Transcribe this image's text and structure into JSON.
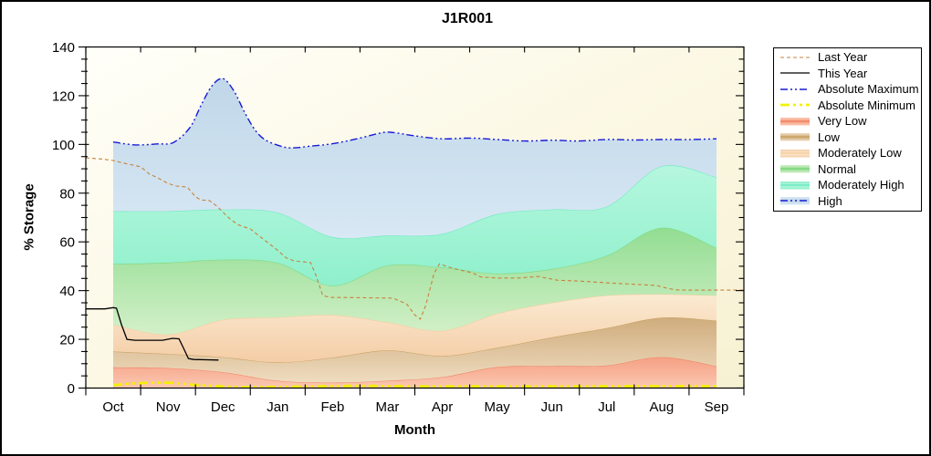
{
  "figure": {
    "title": "J1R001"
  },
  "axes": {
    "y_label": "% Storage",
    "x_label": "Month",
    "y_major_ticks": [
      0,
      20,
      40,
      60,
      80,
      100,
      120,
      140
    ],
    "y_minor_step": 5,
    "y_max": 140,
    "month_labels": [
      "Oct",
      "Nov",
      "Dec",
      "Jan",
      "Feb",
      "Mar",
      "Apr",
      "May",
      "Jun",
      "Jul",
      "Aug",
      "Sep"
    ]
  },
  "legend": {
    "items": [
      {
        "label": "Last Year",
        "ref": "last_year",
        "kind": "line"
      },
      {
        "label": "This Year",
        "ref": "this_year",
        "kind": "line"
      },
      {
        "label": "Absolute Maximum",
        "ref": "absolute_maximum",
        "kind": "line"
      },
      {
        "label": "Absolute Minimum",
        "ref": "absolute_minimum",
        "kind": "line"
      },
      {
        "label": "Very Low",
        "ref": "very_low",
        "kind": "band"
      },
      {
        "label": "Low",
        "ref": "low",
        "kind": "band"
      },
      {
        "label": "Moderately Low",
        "ref": "moderately_low",
        "kind": "band"
      },
      {
        "label": "Normal",
        "ref": "normal",
        "kind": "band"
      },
      {
        "label": "Moderately High",
        "ref": "moderately_high",
        "kind": "band"
      },
      {
        "label": "High",
        "ref": "high",
        "kind": "band-line",
        "line_ref": "absolute_maximum"
      }
    ]
  },
  "chart_data": {
    "type": "area",
    "title": "J1R001",
    "xlabel": "Month",
    "ylabel": "% Storage",
    "ylim": [
      0,
      140
    ],
    "categories": [
      "Oct",
      "Nov",
      "Dec",
      "Jan",
      "Feb",
      "Mar",
      "Apr",
      "May",
      "Jun",
      "Jul",
      "Aug",
      "Sep"
    ],
    "background": {
      "outer": "#FFFFFF",
      "plot_top_left": "#FFFFF9",
      "plot_bottom_right": "#F7F1D3"
    },
    "bands": [
      {
        "name": "very_low",
        "label": "Very Low",
        "values": [
          8.5,
          8.2,
          6.5,
          3.0,
          2.2,
          3.0,
          4.5,
          8.6,
          9.0,
          9.3,
          12.7,
          9.0
        ],
        "fill_top": "#F5A083",
        "fill_bottom": "#FBC8B2",
        "edge": "#F08264"
      },
      {
        "name": "low",
        "label": "Low",
        "values": [
          15.0,
          14.0,
          12.7,
          10.5,
          12.5,
          15.5,
          13.2,
          16.5,
          20.8,
          24.6,
          28.9,
          27.7
        ],
        "fill_top": "#CFAC7C",
        "fill_bottom": "#EFDCC0",
        "edge": "#C9A365"
      },
      {
        "name": "moderately_low",
        "label": "Moderately Low",
        "values": [
          26.0,
          22.0,
          28.0,
          29.0,
          30.0,
          27.0,
          23.5,
          30.5,
          35.0,
          38.0,
          38.5,
          38.0
        ],
        "fill_top": "#FBEAD2",
        "fill_bottom": "#F4CDA6",
        "edge": "#F6CD9E"
      },
      {
        "name": "normal",
        "label": "Normal",
        "values": [
          50.9,
          51.5,
          52.7,
          51.4,
          42.0,
          50.3,
          49.5,
          47.0,
          48.9,
          54.3,
          65.8,
          57.5
        ],
        "fill_top": "#92DD92",
        "fill_bottom": "#D3F0C8",
        "edge": "#7ED87E"
      },
      {
        "name": "moderately_high",
        "label": "Moderately High",
        "values": [
          72.6,
          72.6,
          73.3,
          72.0,
          62.0,
          62.6,
          63.3,
          71.4,
          73.3,
          74.5,
          91.0,
          86.5
        ],
        "fill_top": "#B5F7DE",
        "fill_bottom": "#8FF0CC",
        "edge": "#6BEABF"
      },
      {
        "name": "high",
        "label": "High",
        "values": [
          101,
          100.3,
          127,
          101,
          100.3,
          105,
          102.5,
          102,
          101.5,
          102,
          102,
          102.3
        ],
        "top_from_line": "absolute_maximum",
        "fill_top": "#C0D7E9",
        "fill_bottom": "#D8E8F4",
        "edge": "#1A1AD6"
      }
    ],
    "lines": {
      "last_year": {
        "label": "Last Year",
        "color": "#C8823C",
        "dash": "4 3",
        "width": 1.1,
        "smooth": false,
        "points": [
          [
            0,
            94.5
          ],
          [
            0.3,
            94
          ],
          [
            0.5,
            93.4
          ],
          [
            0.75,
            92
          ],
          [
            1.0,
            90.8
          ],
          [
            1.15,
            88
          ],
          [
            1.35,
            85.8
          ],
          [
            1.5,
            84
          ],
          [
            1.65,
            82.9
          ],
          [
            1.85,
            82.5
          ],
          [
            2.0,
            78.5
          ],
          [
            2.1,
            77.2
          ],
          [
            2.25,
            77
          ],
          [
            2.4,
            74.5
          ],
          [
            2.5,
            72.2
          ],
          [
            2.65,
            69
          ],
          [
            2.8,
            66.8
          ],
          [
            3.0,
            65.3
          ],
          [
            3.1,
            63.5
          ],
          [
            3.3,
            60
          ],
          [
            3.5,
            56.5
          ],
          [
            3.65,
            53.5
          ],
          [
            3.8,
            52.2
          ],
          [
            4.1,
            51.5
          ],
          [
            4.2,
            46
          ],
          [
            4.32,
            38
          ],
          [
            4.45,
            37.2
          ],
          [
            5.0,
            37.1
          ],
          [
            5.6,
            36.9
          ],
          [
            5.85,
            34.5
          ],
          [
            6.0,
            30
          ],
          [
            6.1,
            28.3
          ],
          [
            6.2,
            34
          ],
          [
            6.35,
            47
          ],
          [
            6.45,
            51
          ],
          [
            6.6,
            49.8
          ],
          [
            6.85,
            48.3
          ],
          [
            7.05,
            47.3
          ],
          [
            7.2,
            45.6
          ],
          [
            7.5,
            45.2
          ],
          [
            7.9,
            45.2
          ],
          [
            8.25,
            45.8
          ],
          [
            8.6,
            44.3
          ],
          [
            9.0,
            43.9
          ],
          [
            9.5,
            43.2
          ],
          [
            10.0,
            42.6
          ],
          [
            10.4,
            42.1
          ],
          [
            10.6,
            41
          ],
          [
            10.75,
            40.3
          ],
          [
            11.0,
            40.2
          ],
          [
            11.5,
            40.2
          ],
          [
            12.0,
            40.2
          ]
        ]
      },
      "this_year": {
        "label": "This Year",
        "color": "#000000",
        "dash": "",
        "width": 1.3,
        "smooth": false,
        "points": [
          [
            0,
            32.5
          ],
          [
            0.35,
            32.5
          ],
          [
            0.5,
            33.0
          ],
          [
            0.56,
            32.8
          ],
          [
            0.65,
            26
          ],
          [
            0.75,
            20
          ],
          [
            0.9,
            19.6
          ],
          [
            1.4,
            19.6
          ],
          [
            1.58,
            20.4
          ],
          [
            1.7,
            20.2
          ],
          [
            1.78,
            16.5
          ],
          [
            1.87,
            12.1
          ],
          [
            1.97,
            11.7
          ],
          [
            2.2,
            11.6
          ],
          [
            2.42,
            11.5
          ]
        ]
      },
      "absolute_maximum": {
        "label": "Absolute Maximum",
        "color": "#1A1AD6",
        "dash": "8 3 2 3 2 3",
        "width": 1.4,
        "smooth": true,
        "points": [
          [
            0.5,
            101
          ],
          [
            0.9,
            99.8
          ],
          [
            1.3,
            100.2
          ],
          [
            1.6,
            100.8
          ],
          [
            1.9,
            107
          ],
          [
            2.1,
            116
          ],
          [
            2.3,
            124
          ],
          [
            2.5,
            127
          ],
          [
            2.7,
            122
          ],
          [
            2.9,
            113
          ],
          [
            3.1,
            105.5
          ],
          [
            3.3,
            101.5
          ],
          [
            3.6,
            99
          ],
          [
            3.8,
            98.6
          ],
          [
            4.1,
            99.3
          ],
          [
            4.5,
            100.3
          ],
          [
            5.0,
            102.6
          ],
          [
            5.4,
            104.8
          ],
          [
            5.6,
            104.9
          ],
          [
            6.0,
            103.5
          ],
          [
            6.5,
            102.3
          ],
          [
            7.0,
            102.6
          ],
          [
            7.5,
            102
          ],
          [
            8.0,
            101.4
          ],
          [
            8.5,
            101.7
          ],
          [
            9.0,
            101.4
          ],
          [
            9.5,
            102
          ],
          [
            10.0,
            101.8
          ],
          [
            10.5,
            102
          ],
          [
            11.0,
            102
          ],
          [
            11.5,
            102.3
          ]
        ]
      },
      "absolute_minimum": {
        "label": "Absolute Minimum",
        "color": "#F2F200",
        "dash": "10 4 3 4 3 4",
        "width": 2.8,
        "smooth": true,
        "points": [
          [
            0.5,
            1.2
          ],
          [
            0.8,
            1.8
          ],
          [
            1.1,
            2.1
          ],
          [
            1.4,
            2.2
          ],
          [
            1.7,
            1.9
          ],
          [
            2.0,
            1.3
          ],
          [
            2.3,
            0.9
          ],
          [
            2.7,
            0.5
          ],
          [
            3.2,
            0.4
          ],
          [
            4.0,
            0.6
          ],
          [
            5.0,
            0.9
          ],
          [
            6.0,
            0.7
          ],
          [
            7.0,
            0.7
          ],
          [
            8.0,
            0.7
          ],
          [
            9.0,
            0.7
          ],
          [
            10.0,
            0.8
          ],
          [
            11.0,
            0.8
          ],
          [
            11.5,
            0.8
          ]
        ]
      }
    }
  }
}
